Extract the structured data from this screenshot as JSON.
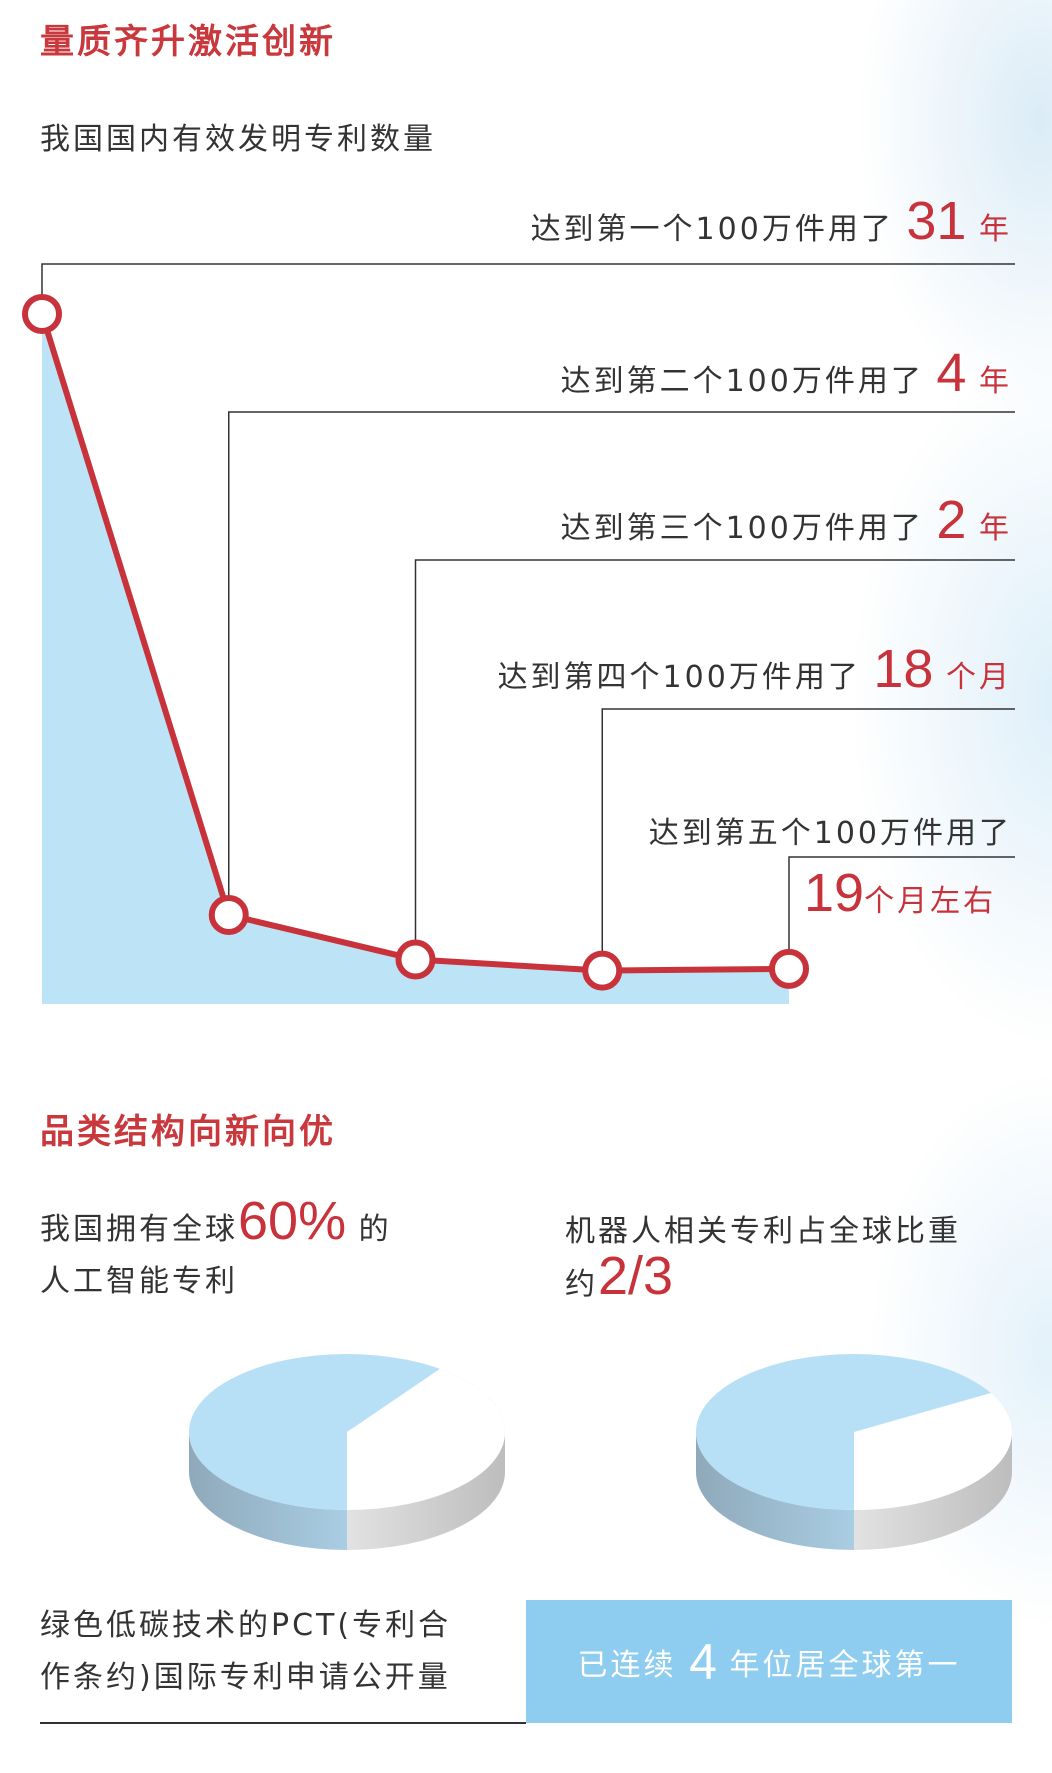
{
  "section1": {
    "title": "量质齐升激活创新",
    "subtitle": "我国国内有效发明专利数量"
  },
  "chart_data": {
    "type": "line",
    "categories": [
      "第一个100万件",
      "第二个100万件",
      "第三个100万件",
      "第四个100万件",
      "第五个100万件"
    ],
    "values_years": [
      31,
      4,
      2,
      1.5,
      1.58
    ],
    "labels": [
      {
        "text": "达到第一个100万件用了",
        "value": "31",
        "unit": "年"
      },
      {
        "text": "达到第二个100万件用了",
        "value": "4",
        "unit": "年"
      },
      {
        "text": "达到第三个100万件用了",
        "value": "2",
        "unit": "年"
      },
      {
        "text": "达到第四个100万件用了",
        "value": "18",
        "unit": "个月"
      },
      {
        "text": "达到第五个100万件用了",
        "value": "19",
        "unit": "个月左右"
      }
    ],
    "colors": {
      "line": "#c8323a",
      "fill": "#bde3f7",
      "leader": "#333333"
    }
  },
  "section2": {
    "title": "品类结构向新向优",
    "ai": {
      "line1_pre": "我国拥有全球",
      "value": "60%",
      "line1_post": "的",
      "line2": "人工智能专利",
      "share": 0.6
    },
    "robot": {
      "line1": "机器人相关专利占全球比重",
      "line2_pre": "约",
      "value": "2/3",
      "share": 0.6667
    },
    "green": {
      "line1": "绿色低碳技术的PCT(专利合",
      "line2": "作条约)国际专利申请公开量"
    },
    "badge": {
      "pre": "已连续",
      "value": "4",
      "post": "年位居全球第一"
    },
    "colors": {
      "pie_blue": "#b7e0f6",
      "pie_white": "#ffffff",
      "badge": "#8ecdf0"
    }
  }
}
